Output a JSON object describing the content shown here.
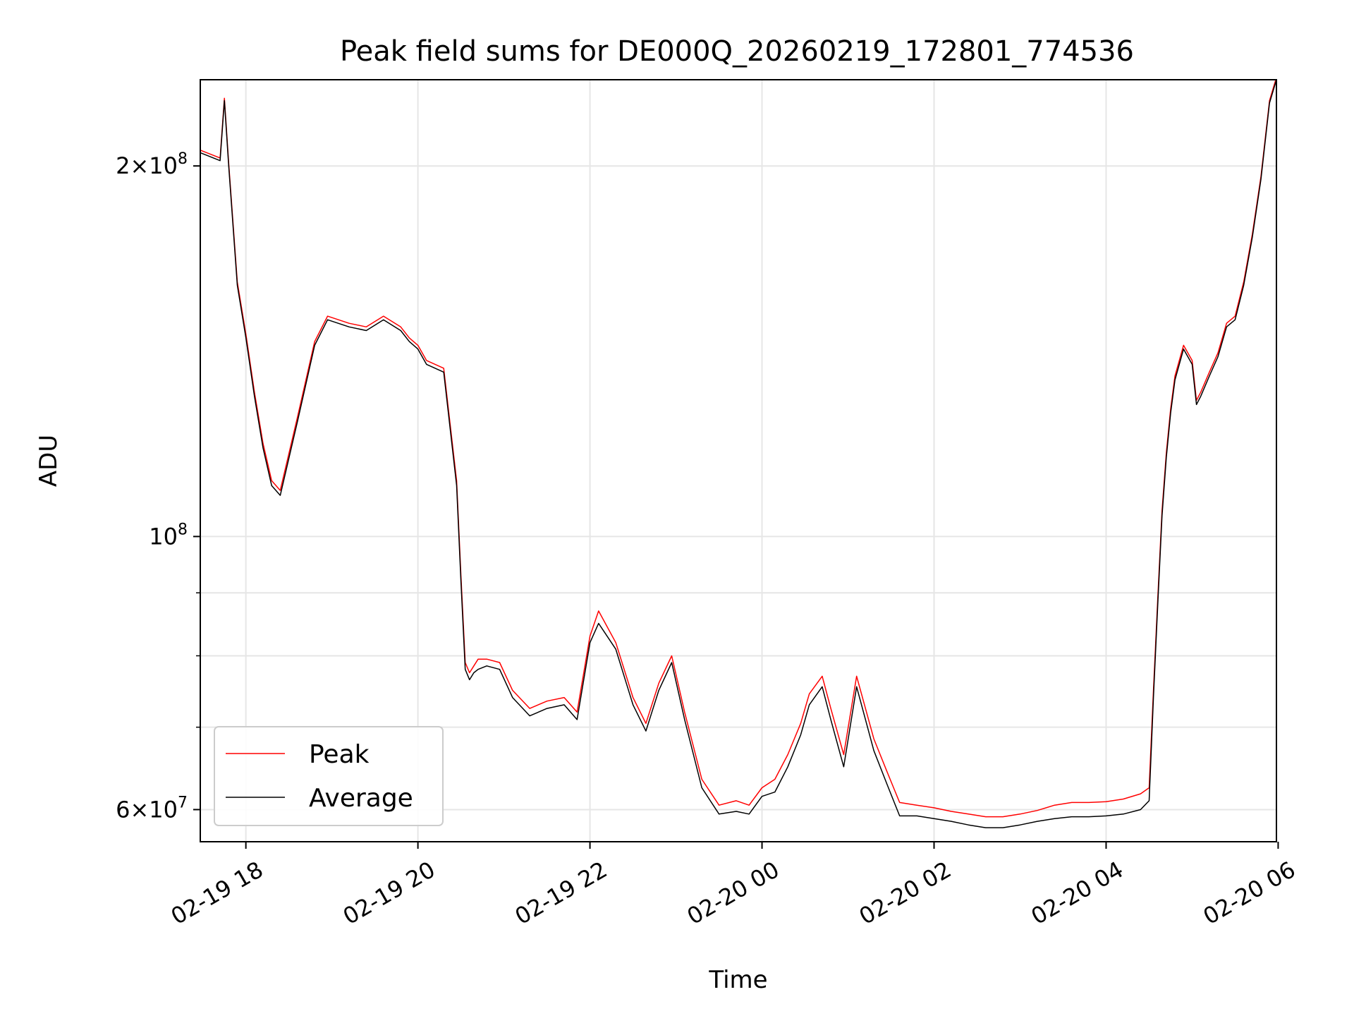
{
  "chart_data": {
    "type": "line",
    "title": "Peak field sums for DE000Q_20260219_172801_774536",
    "xlabel": "Time",
    "ylabel": "ADU",
    "y_scale": "log",
    "x_unit": "hours since 02-19 00:00",
    "xlim": [
      17.47,
      29.98
    ],
    "ylim": [
      56500000,
      235000000
    ],
    "grid": true,
    "legend_position": "lower-left",
    "x_ticks": [
      {
        "value": 18,
        "label": "02-19 18"
      },
      {
        "value": 20,
        "label": "02-19 20"
      },
      {
        "value": 22,
        "label": "02-19 22"
      },
      {
        "value": 24,
        "label": "02-20 00"
      },
      {
        "value": 26,
        "label": "02-20 02"
      },
      {
        "value": 28,
        "label": "02-20 04"
      },
      {
        "value": 30,
        "label": "02-20 06"
      }
    ],
    "y_major_ticks": [
      {
        "value": 60000000,
        "mantissa": "6",
        "base": "10",
        "exp": "7"
      },
      {
        "value": 100000000,
        "mantissa": "",
        "base": "10",
        "exp": "8"
      },
      {
        "value": 200000000,
        "mantissa": "2",
        "base": "10",
        "exp": "8"
      }
    ],
    "y_minor_ticks": [
      70000000,
      80000000,
      90000000
    ],
    "series": [
      {
        "name": "Average",
        "color": "#000000",
        "x": [
          17.47,
          17.7,
          17.75,
          17.8,
          17.9,
          18.0,
          18.1,
          18.2,
          18.3,
          18.4,
          18.6,
          18.8,
          18.95,
          19.2,
          19.4,
          19.6,
          19.8,
          19.9,
          20.0,
          20.1,
          20.3,
          20.45,
          20.5,
          20.55,
          20.6,
          20.65,
          20.7,
          20.8,
          20.95,
          21.1,
          21.3,
          21.5,
          21.7,
          21.85,
          22.0,
          22.1,
          22.3,
          22.5,
          22.65,
          22.8,
          22.95,
          23.1,
          23.3,
          23.5,
          23.7,
          23.85,
          24.0,
          24.15,
          24.3,
          24.45,
          24.55,
          24.7,
          24.8,
          24.95,
          25.1,
          25.3,
          25.45,
          25.6,
          25.8,
          26.0,
          26.2,
          26.4,
          26.6,
          26.8,
          27.0,
          27.2,
          27.4,
          27.6,
          27.8,
          28.0,
          28.2,
          28.4,
          28.5,
          28.55,
          28.6,
          28.65,
          28.7,
          28.75,
          28.8,
          28.9,
          29.0,
          29.05,
          29.1,
          29.2,
          29.3,
          29.4,
          29.5,
          29.6,
          29.7,
          29.8,
          29.9,
          29.98
        ],
        "values": [
          205000000,
          202000000,
          226000000,
          200000000,
          160000000,
          145000000,
          130000000,
          118000000,
          110000000,
          108000000,
          124000000,
          143000000,
          150000000,
          148000000,
          147000000,
          150000000,
          147000000,
          144000000,
          142000000,
          138000000,
          136000000,
          110000000,
          92000000,
          78000000,
          76500000,
          77500000,
          78000000,
          78500000,
          78000000,
          74000000,
          71500000,
          72500000,
          73000000,
          71000000,
          82000000,
          85000000,
          81000000,
          73000000,
          69500000,
          75000000,
          79000000,
          71000000,
          62500000,
          59500000,
          59800000,
          59500000,
          61500000,
          62000000,
          65000000,
          69000000,
          73000000,
          75500000,
          71000000,
          65000000,
          75500000,
          67000000,
          63000000,
          59300000,
          59300000,
          59000000,
          58700000,
          58300000,
          58000000,
          58000000,
          58300000,
          58700000,
          59000000,
          59200000,
          59200000,
          59300000,
          59500000,
          60000000,
          61000000,
          74000000,
          88000000,
          104000000,
          116000000,
          126000000,
          134000000,
          142000000,
          138000000,
          128000000,
          130000000,
          135000000,
          140000000,
          148000000,
          150000000,
          160000000,
          175000000,
          195000000,
          225000000,
          235000000
        ]
      },
      {
        "name": "Peak",
        "color": "#ff0000",
        "x": [
          17.47,
          17.7,
          17.75,
          17.8,
          17.9,
          18.0,
          18.1,
          18.2,
          18.3,
          18.4,
          18.6,
          18.8,
          18.95,
          19.2,
          19.4,
          19.6,
          19.8,
          19.9,
          20.0,
          20.1,
          20.3,
          20.45,
          20.5,
          20.55,
          20.6,
          20.65,
          20.7,
          20.8,
          20.95,
          21.1,
          21.3,
          21.5,
          21.7,
          21.85,
          22.0,
          22.1,
          22.3,
          22.5,
          22.65,
          22.8,
          22.95,
          23.1,
          23.3,
          23.5,
          23.7,
          23.85,
          24.0,
          24.15,
          24.3,
          24.45,
          24.55,
          24.7,
          24.8,
          24.95,
          25.1,
          25.3,
          25.45,
          25.6,
          25.8,
          26.0,
          26.2,
          26.4,
          26.6,
          26.8,
          27.0,
          27.2,
          27.4,
          27.6,
          27.8,
          28.0,
          28.2,
          28.4,
          28.5,
          28.55,
          28.6,
          28.65,
          28.7,
          28.75,
          28.8,
          28.9,
          29.0,
          29.05,
          29.1,
          29.2,
          29.3,
          29.4,
          29.5,
          29.6,
          29.7,
          29.8,
          29.9,
          29.98
        ],
        "values": [
          206000000,
          203000000,
          227000000,
          201000000,
          161000000,
          146000000,
          131000000,
          119000000,
          111000000,
          109000000,
          125000000,
          144000000,
          151000000,
          149000000,
          148000000,
          151000000,
          148000000,
          145000000,
          143000000,
          139000000,
          137000000,
          111000000,
          93000000,
          79000000,
          77500000,
          78500000,
          79500000,
          79500000,
          79000000,
          75000000,
          72500000,
          73500000,
          74000000,
          72000000,
          83000000,
          87000000,
          82000000,
          74000000,
          70500000,
          76000000,
          80000000,
          72000000,
          63500000,
          60500000,
          61000000,
          60500000,
          62500000,
          63500000,
          66500000,
          70500000,
          74500000,
          77000000,
          72500000,
          66500000,
          77000000,
          68500000,
          64500000,
          60800000,
          60500000,
          60200000,
          59800000,
          59500000,
          59200000,
          59200000,
          59500000,
          59900000,
          60500000,
          60800000,
          60800000,
          60900000,
          61200000,
          61800000,
          62500000,
          75000000,
          89000000,
          105000000,
          117000000,
          127000000,
          135000000,
          143000000,
          139000000,
          129000000,
          131000000,
          136000000,
          141000000,
          149000000,
          151000000,
          161000000,
          176000000,
          196000000,
          226000000,
          236000000
        ]
      }
    ]
  }
}
